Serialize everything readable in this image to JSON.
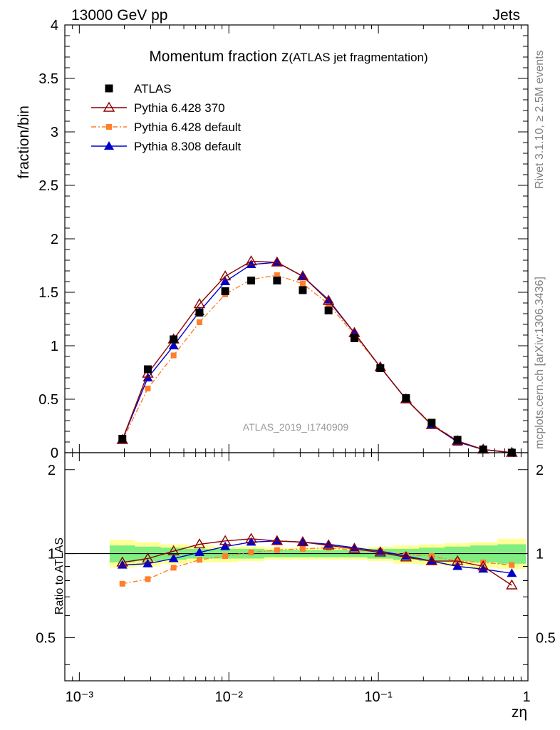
{
  "header": {
    "left": "13000 GeV pp",
    "right": "Jets"
  },
  "side_labels": {
    "rivet": "Rivet 3.1.10, ≥ 2.5M events",
    "mcplots": "mcplots.cern.ch [arXiv:1306.3436]"
  },
  "colors": {
    "atlas": "#000000",
    "p6_370": "#8b0000",
    "p6_default": "#ff7f2a",
    "p8_default": "#0000cd",
    "band_outer": "#ffff99",
    "band_inner": "#80ee80"
  },
  "chart_data": [
    {
      "type": "scatter",
      "panel": "main",
      "title": "Momentum fraction z",
      "title_sub": "(ATLAS jet fragmentation)",
      "ylabel": "fraction/bin",
      "xlabel": "zη",
      "xscale": "log",
      "xlim": [
        0.0008,
        1.0
      ],
      "ylim": [
        0,
        4
      ],
      "yticks": [
        "0",
        "0.5",
        "1",
        "1.5",
        "2",
        "2.5",
        "3",
        "3.5",
        "4"
      ],
      "xticks": [
        "10⁻³",
        "10⁻²",
        "10⁻¹",
        "1"
      ],
      "analysis_label": "ATLAS_2019_I1740909",
      "legend": "top-left",
      "x": [
        0.00194,
        0.00287,
        0.00427,
        0.00636,
        0.00945,
        0.0141,
        0.021,
        0.0312,
        0.0464,
        0.0691,
        0.103,
        0.153,
        0.227,
        0.338,
        0.502,
        0.78
      ],
      "series": [
        {
          "name": "ATLAS",
          "key": "atlas",
          "values": [
            0.13,
            0.78,
            1.06,
            1.31,
            1.51,
            1.61,
            1.61,
            1.52,
            1.33,
            1.07,
            0.79,
            0.51,
            0.28,
            0.12,
            0.03,
            0.0
          ]
        },
        {
          "name": "Pythia 6.428 370",
          "key": "p6_370",
          "values": [
            0.12,
            0.74,
            1.06,
            1.39,
            1.65,
            1.79,
            1.78,
            1.65,
            1.42,
            1.12,
            0.8,
            0.5,
            0.26,
            0.11,
            0.03,
            0.0
          ]
        },
        {
          "name": "Pythia 6.428 default",
          "key": "p6_default",
          "values": [
            0.11,
            0.6,
            0.91,
            1.22,
            1.48,
            1.62,
            1.66,
            1.58,
            1.39,
            1.1,
            0.8,
            0.5,
            0.27,
            0.11,
            0.03,
            0.0
          ]
        },
        {
          "name": "Pythia 8.308 default",
          "key": "p8_default",
          "values": [
            0.12,
            0.7,
            1.0,
            1.32,
            1.6,
            1.76,
            1.78,
            1.65,
            1.43,
            1.12,
            0.8,
            0.5,
            0.26,
            0.1,
            0.03,
            0.0
          ]
        }
      ]
    },
    {
      "type": "line",
      "panel": "ratio",
      "ylabel": "Ratio to ATLAS",
      "xscale": "log",
      "xlim": [
        0.0008,
        1.0
      ],
      "ylim": [
        0.35,
        2.3
      ],
      "yticks": [
        "0.5",
        "1",
        "2"
      ],
      "x": [
        0.00194,
        0.00287,
        0.00427,
        0.00636,
        0.00945,
        0.0141,
        0.021,
        0.0312,
        0.0464,
        0.0691,
        0.103,
        0.153,
        0.227,
        0.338,
        0.502,
        0.78
      ],
      "band_outer": {
        "low": [
          0.89,
          0.9,
          0.92,
          0.93,
          0.93,
          0.94,
          0.95,
          0.95,
          0.95,
          0.95,
          0.94,
          0.92,
          0.91,
          0.9,
          0.89,
          0.88
        ],
        "high": [
          1.12,
          1.1,
          1.08,
          1.07,
          1.06,
          1.06,
          1.05,
          1.05,
          1.05,
          1.05,
          1.06,
          1.07,
          1.08,
          1.09,
          1.1,
          1.13
        ]
      },
      "band_inner": {
        "low": [
          0.93,
          0.94,
          0.95,
          0.96,
          0.96,
          0.96,
          0.97,
          0.97,
          0.97,
          0.97,
          0.96,
          0.95,
          0.94,
          0.94,
          0.93,
          0.92
        ],
        "high": [
          1.07,
          1.06,
          1.05,
          1.04,
          1.04,
          1.04,
          1.03,
          1.03,
          1.03,
          1.03,
          1.04,
          1.04,
          1.05,
          1.06,
          1.07,
          1.08
        ]
      },
      "series": [
        {
          "name": "Pythia 6.428 370",
          "key": "p6_370",
          "values": [
            0.93,
            0.96,
            1.02,
            1.08,
            1.11,
            1.13,
            1.11,
            1.1,
            1.07,
            1.04,
            1.01,
            0.97,
            0.94,
            0.94,
            0.9,
            0.77
          ]
        },
        {
          "name": "Pythia 6.428 default",
          "key": "p6_default",
          "values": [
            0.78,
            0.81,
            0.89,
            0.95,
            0.98,
            1.01,
            1.03,
            1.04,
            1.05,
            1.03,
            1.02,
            0.99,
            0.98,
            0.94,
            0.93,
            0.91
          ]
        },
        {
          "name": "Pythia 8.308 default",
          "key": "p8_default",
          "values": [
            0.91,
            0.92,
            0.96,
            1.01,
            1.06,
            1.1,
            1.11,
            1.1,
            1.08,
            1.05,
            1.02,
            0.98,
            0.94,
            0.9,
            0.88,
            0.85
          ]
        }
      ]
    }
  ]
}
